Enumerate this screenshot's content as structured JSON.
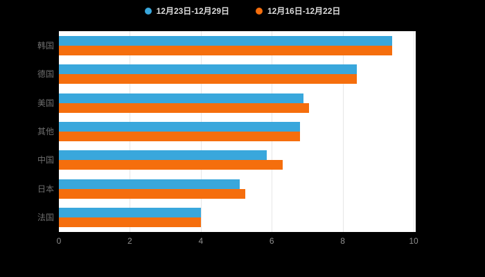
{
  "page": {
    "background": "#000000",
    "plot_background": "#ffffff"
  },
  "legend": {
    "items": [
      {
        "label": "12月23日-12月29日",
        "color": "#39A7DC"
      },
      {
        "label": "12月16日-12月22日",
        "color": "#F56E0D"
      }
    ]
  },
  "chart_data": {
    "type": "bar",
    "orientation": "horizontal",
    "title": "",
    "xlabel": "",
    "ylabel": "",
    "categories": [
      "韩国",
      "德国",
      "美国",
      "其他",
      "中国",
      "日本",
      "法国"
    ],
    "series": [
      {
        "name": "12月23日-12月29日",
        "color": "#39A7DC",
        "values": [
          9.4,
          8.4,
          6.9,
          6.8,
          5.85,
          5.1,
          4.0
        ]
      },
      {
        "name": "12月16日-12月22日",
        "color": "#F56E0D",
        "values": [
          9.4,
          8.4,
          7.05,
          6.8,
          6.3,
          5.25,
          4.0
        ]
      }
    ],
    "xlim": [
      0,
      10
    ],
    "x_ticks": [
      0,
      2,
      4,
      6,
      8,
      10
    ],
    "grid": true,
    "legend_position": "top"
  }
}
